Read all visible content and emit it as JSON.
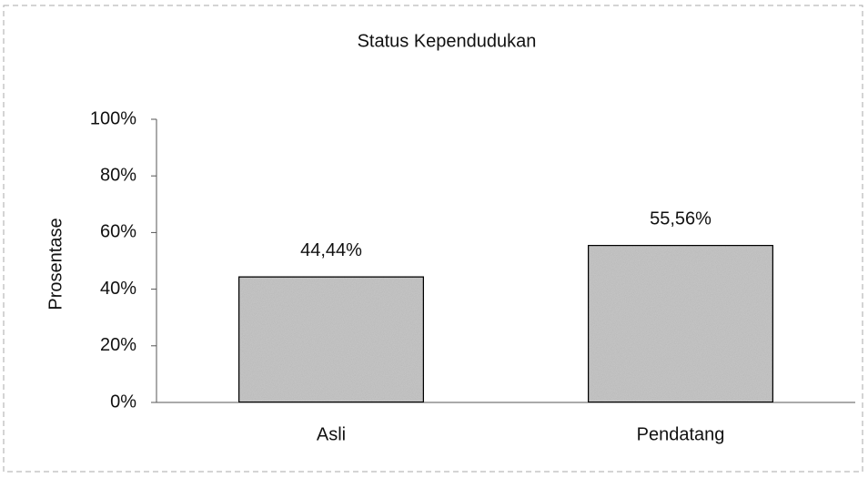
{
  "chart_data": {
    "type": "bar",
    "title": "Status Kependudukan",
    "y_label": "Prosentase",
    "categories": [
      "Asli",
      "Pendatang"
    ],
    "values": [
      44.44,
      55.56
    ],
    "value_labels": [
      "44,44%",
      "55,56%"
    ],
    "color": "#c8c8c8",
    "ylim": [
      0,
      100
    ],
    "yticks": [
      {
        "value": 0,
        "label": "0%"
      },
      {
        "value": 20,
        "label": "20%"
      },
      {
        "value": 40,
        "label": "40%"
      },
      {
        "value": 60,
        "label": "60%"
      },
      {
        "value": 80,
        "label": "80%"
      },
      {
        "value": 100,
        "label": "100%"
      }
    ],
    "grid": false
  }
}
